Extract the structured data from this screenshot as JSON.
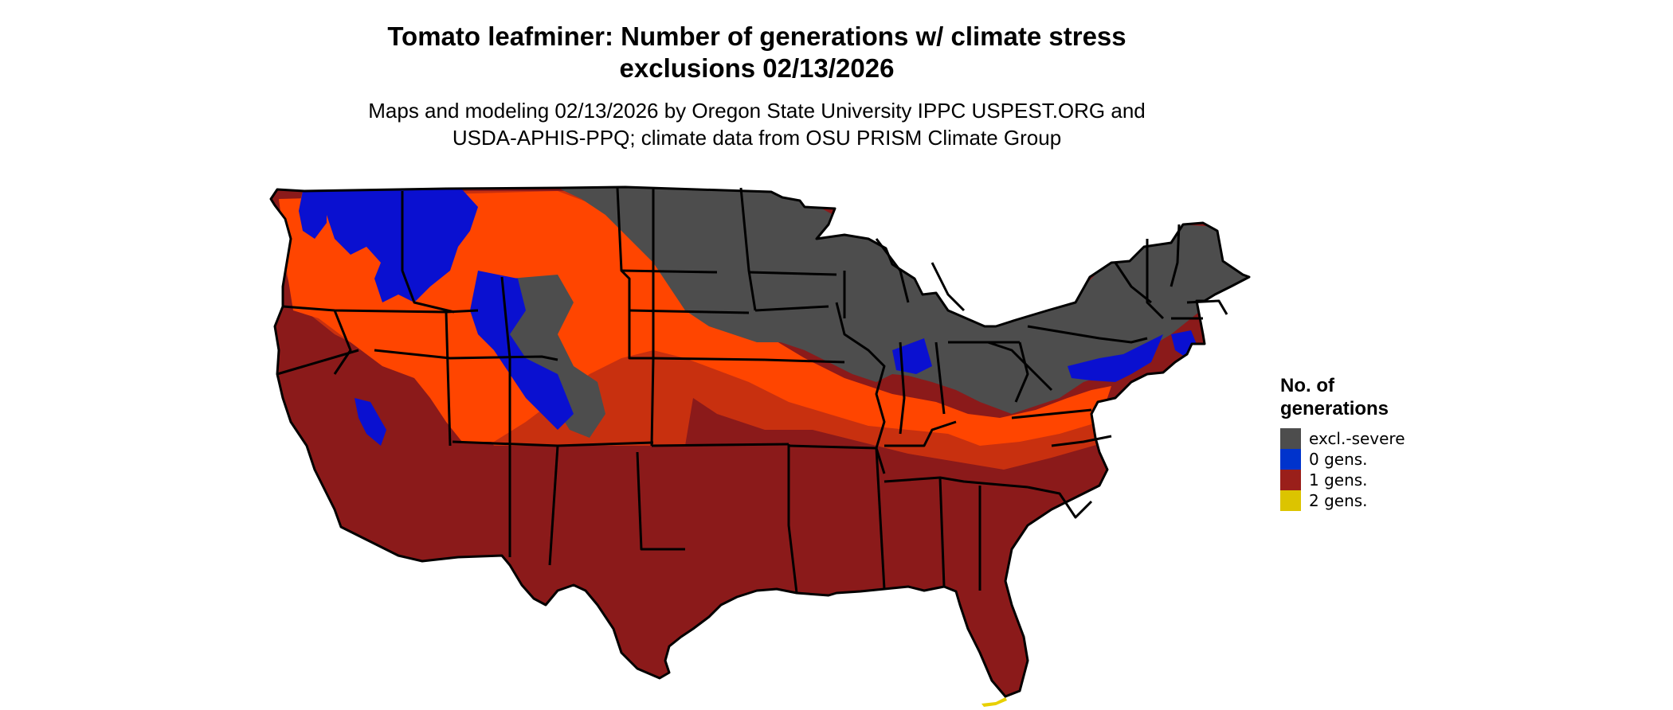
{
  "title": {
    "line1": "Tomato leafminer: Number of generations w/ climate stress",
    "line2": "exclusions 02/13/2026"
  },
  "subtitle": {
    "line1": "Maps and modeling 02/13/2026 by Oregon State University IPPC USPEST.ORG and",
    "line2": "USDA-APHIS-PPQ; climate data from OSU PRISM Climate Group"
  },
  "legend": {
    "title_line1": "No. of",
    "title_line2": "generations",
    "items": [
      {
        "label": "excl.-severe",
        "color": "#4d4d4d"
      },
      {
        "label": "0 gens.",
        "color": "#0033cc"
      },
      {
        "label": "1 gens.",
        "color": "#9a1f1a"
      },
      {
        "label": "2 gens.",
        "color": "#dcc400"
      }
    ]
  },
  "colors": {
    "excluded": "#4d4d4d",
    "zero_gens": "#0a10d0",
    "one_gen_dark": "#8b1a1a",
    "one_gen_mid": "#c8300f",
    "one_gen_light": "#ff4500",
    "two_gens": "#e8d000",
    "state_border": "#000000",
    "background": "#ffffff"
  }
}
